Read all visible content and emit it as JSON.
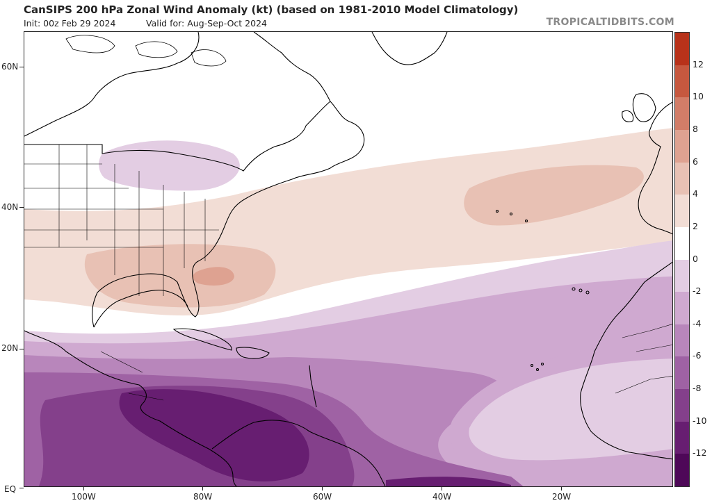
{
  "header": {
    "title": "CanSIPS 200 hPa Zonal Wind Anomaly (kt) (based on 1981-2010 Model Climatology)",
    "init": "Init: 00z Feb 29 2024",
    "valid": "Valid for: Aug-Sep-Oct 2024",
    "credit": "TROPICALTIDBITS.COM"
  },
  "axes": {
    "lat_labels": [
      "60N",
      "40N",
      "20N",
      "EQ"
    ],
    "lon_labels": [
      "100W",
      "80W",
      "60W",
      "40W",
      "20W"
    ]
  },
  "colorbar": {
    "labels": [
      "12",
      "10",
      "8",
      "6",
      "4",
      "2",
      "0",
      "-2",
      "-4",
      "-6",
      "-8",
      "-10",
      "-12"
    ],
    "levels": [
      14,
      12,
      10,
      8,
      6,
      4,
      2,
      -2,
      -4,
      -6,
      -8,
      -10,
      -12,
      -14
    ],
    "colors": [
      "#b8321a",
      "#c6583f",
      "#d27d68",
      "#dea291",
      "#e8c1b4",
      "#f2ddd5",
      "#ffffff",
      "#e3cde3",
      "#cfa9d0",
      "#b886bb",
      "#9f62a4",
      "#84408b",
      "#671e71",
      "#4e0858"
    ]
  },
  "map": {
    "land_color": "#ffffff",
    "coast_color": "#000000",
    "anomaly_shading": "filled contours of 200 hPa zonal wind anomaly (kt)"
  }
}
